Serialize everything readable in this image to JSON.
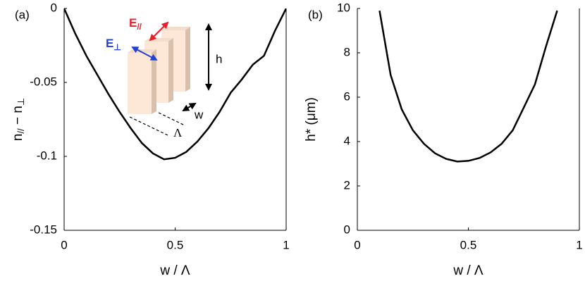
{
  "chart_data": [
    {
      "type": "line",
      "panel_label": "(a)",
      "xlabel": "w / Λ",
      "ylabel": [
        "n",
        "//",
        " − n",
        "⊥"
      ],
      "x": [
        0,
        0.05,
        0.1,
        0.15,
        0.2,
        0.25,
        0.3,
        0.35,
        0.4,
        0.45,
        0.5,
        0.55,
        0.6,
        0.65,
        0.7,
        0.75,
        0.8,
        0.85,
        0.9,
        0.95,
        1
      ],
      "series": [
        {
          "color": "#000000",
          "values": [
            0,
            -0.017,
            -0.032,
            -0.045,
            -0.058,
            -0.07,
            -0.081,
            -0.091,
            -0.098,
            -0.102,
            -0.101,
            -0.097,
            -0.09,
            -0.081,
            -0.07,
            -0.057,
            -0.048,
            -0.038,
            -0.032,
            -0.015,
            0
          ]
        }
      ],
      "xlim": [
        0,
        1
      ],
      "xticks": [
        0,
        0.5,
        1
      ],
      "ylim": [
        -0.15,
        0
      ],
      "yticks": [
        0,
        -0.05,
        -0.1,
        -0.15
      ],
      "annotations": [
        [
          "E",
          "//"
        ],
        [
          "E",
          "⊥"
        ],
        "h",
        "w",
        "Λ"
      ]
    },
    {
      "type": "line",
      "panel_label": "(b)",
      "xlabel": "w / Λ",
      "ylabel": [
        "h* (μm)"
      ],
      "x": [
        0.1,
        0.15,
        0.2,
        0.25,
        0.3,
        0.35,
        0.4,
        0.45,
        0.5,
        0.55,
        0.6,
        0.65,
        0.7,
        0.75,
        0.8,
        0.85,
        0.9
      ],
      "series": [
        {
          "color": "#000000",
          "values": [
            9.9,
            7.0,
            5.45,
            4.51,
            3.9,
            3.47,
            3.22,
            3.1,
            3.13,
            3.26,
            3.51,
            3.9,
            4.51,
            5.54,
            6.58,
            8.3,
            9.9
          ]
        }
      ],
      "xlim": [
        0,
        1
      ],
      "xticks": [
        0,
        0.5,
        1
      ],
      "ylim": [
        0,
        10
      ],
      "yticks": [
        0,
        2,
        4,
        6,
        8,
        10
      ]
    }
  ]
}
